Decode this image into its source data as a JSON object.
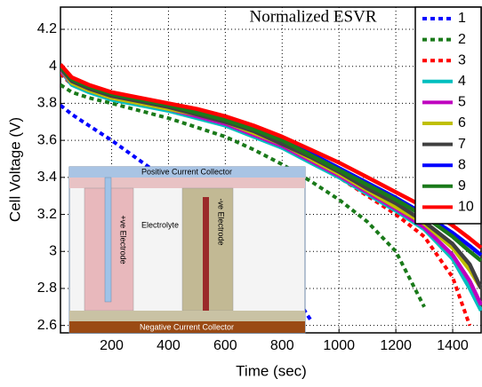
{
  "chart_data": {
    "type": "line",
    "title": "Normalized ESVR",
    "xlabel": "Time (sec)",
    "ylabel": "Cell Voltage (V)",
    "x": [
      20,
      60,
      120,
      200,
      300,
      400,
      500,
      600,
      700,
      800,
      900,
      1000,
      1100,
      1200,
      1300,
      1400,
      1460,
      1500
    ],
    "series": [
      {
        "name": "1",
        "color": "#0000ff",
        "dashed": true,
        "values": [
          3.79,
          3.74,
          3.68,
          3.6,
          3.49,
          3.38,
          3.27,
          3.15,
          3.03,
          2.87,
          2.63,
          null,
          null,
          null,
          null,
          null,
          null,
          null
        ]
      },
      {
        "name": "2",
        "color": "#1a7a1a",
        "dashed": true,
        "values": [
          3.9,
          3.86,
          3.83,
          3.8,
          3.76,
          3.72,
          3.67,
          3.62,
          3.55,
          3.47,
          3.38,
          3.28,
          3.16,
          3.0,
          2.7,
          null,
          null,
          null
        ]
      },
      {
        "name": "3",
        "color": "#ff0000",
        "dashed": true,
        "values": [
          3.96,
          3.9,
          3.87,
          3.85,
          3.82,
          3.78,
          3.74,
          3.7,
          3.64,
          3.57,
          3.49,
          3.4,
          3.3,
          3.2,
          3.08,
          2.86,
          2.6,
          null
        ]
      },
      {
        "name": "4",
        "color": "#00bfbf",
        "dashed": false,
        "values": [
          3.98,
          3.9,
          3.86,
          3.82,
          3.79,
          3.76,
          3.72,
          3.68,
          3.62,
          3.56,
          3.48,
          3.4,
          3.31,
          3.22,
          3.12,
          2.96,
          2.8,
          2.68
        ]
      },
      {
        "name": "5",
        "color": "#bf00bf",
        "dashed": false,
        "values": [
          3.98,
          3.91,
          3.87,
          3.83,
          3.8,
          3.77,
          3.73,
          3.69,
          3.63,
          3.57,
          3.49,
          3.41,
          3.32,
          3.23,
          3.13,
          2.98,
          2.84,
          2.71
        ]
      },
      {
        "name": "6",
        "color": "#bfbf00",
        "dashed": false,
        "values": [
          3.99,
          3.91,
          3.87,
          3.83,
          3.8,
          3.77,
          3.74,
          3.7,
          3.64,
          3.58,
          3.5,
          3.42,
          3.33,
          3.24,
          3.15,
          3.02,
          2.9,
          2.8
        ]
      },
      {
        "name": "7",
        "color": "#404040",
        "dashed": false,
        "values": [
          3.99,
          3.92,
          3.88,
          3.84,
          3.81,
          3.78,
          3.74,
          3.7,
          3.65,
          3.58,
          3.51,
          3.43,
          3.34,
          3.26,
          3.16,
          3.04,
          2.93,
          2.8
        ]
      },
      {
        "name": "8",
        "color": "#0000ff",
        "dashed": false,
        "values": [
          4.0,
          3.93,
          3.89,
          3.85,
          3.82,
          3.79,
          3.76,
          3.72,
          3.67,
          3.6,
          3.53,
          3.45,
          3.37,
          3.29,
          3.2,
          3.1,
          3.03,
          2.98
        ]
      },
      {
        "name": "9",
        "color": "#1a7a1a",
        "dashed": false,
        "values": [
          4.0,
          3.93,
          3.89,
          3.85,
          3.82,
          3.79,
          3.75,
          3.71,
          3.66,
          3.6,
          3.52,
          3.44,
          3.36,
          3.28,
          3.19,
          3.08,
          3.0,
          2.95
        ]
      },
      {
        "name": "10",
        "color": "#ff0000",
        "dashed": false,
        "values": [
          4.01,
          3.94,
          3.9,
          3.86,
          3.83,
          3.8,
          3.77,
          3.73,
          3.68,
          3.62,
          3.55,
          3.48,
          3.4,
          3.32,
          3.24,
          3.14,
          3.07,
          3.02
        ]
      }
    ],
    "xlim": [
      20,
      1500
    ],
    "ylim": [
      2.56,
      4.32
    ],
    "xticks": [
      200,
      400,
      600,
      800,
      1000,
      1200,
      1400
    ],
    "yticks": [
      2.6,
      2.8,
      3,
      3.2,
      3.4,
      3.6,
      3.8,
      4,
      4.2
    ],
    "grid": true,
    "legend": "upper right",
    "annotations": [
      "Positive Current Collector",
      "Electrolyte",
      "+ve Electrode",
      "-ve Electrode",
      "Negative Current Collector"
    ]
  }
}
